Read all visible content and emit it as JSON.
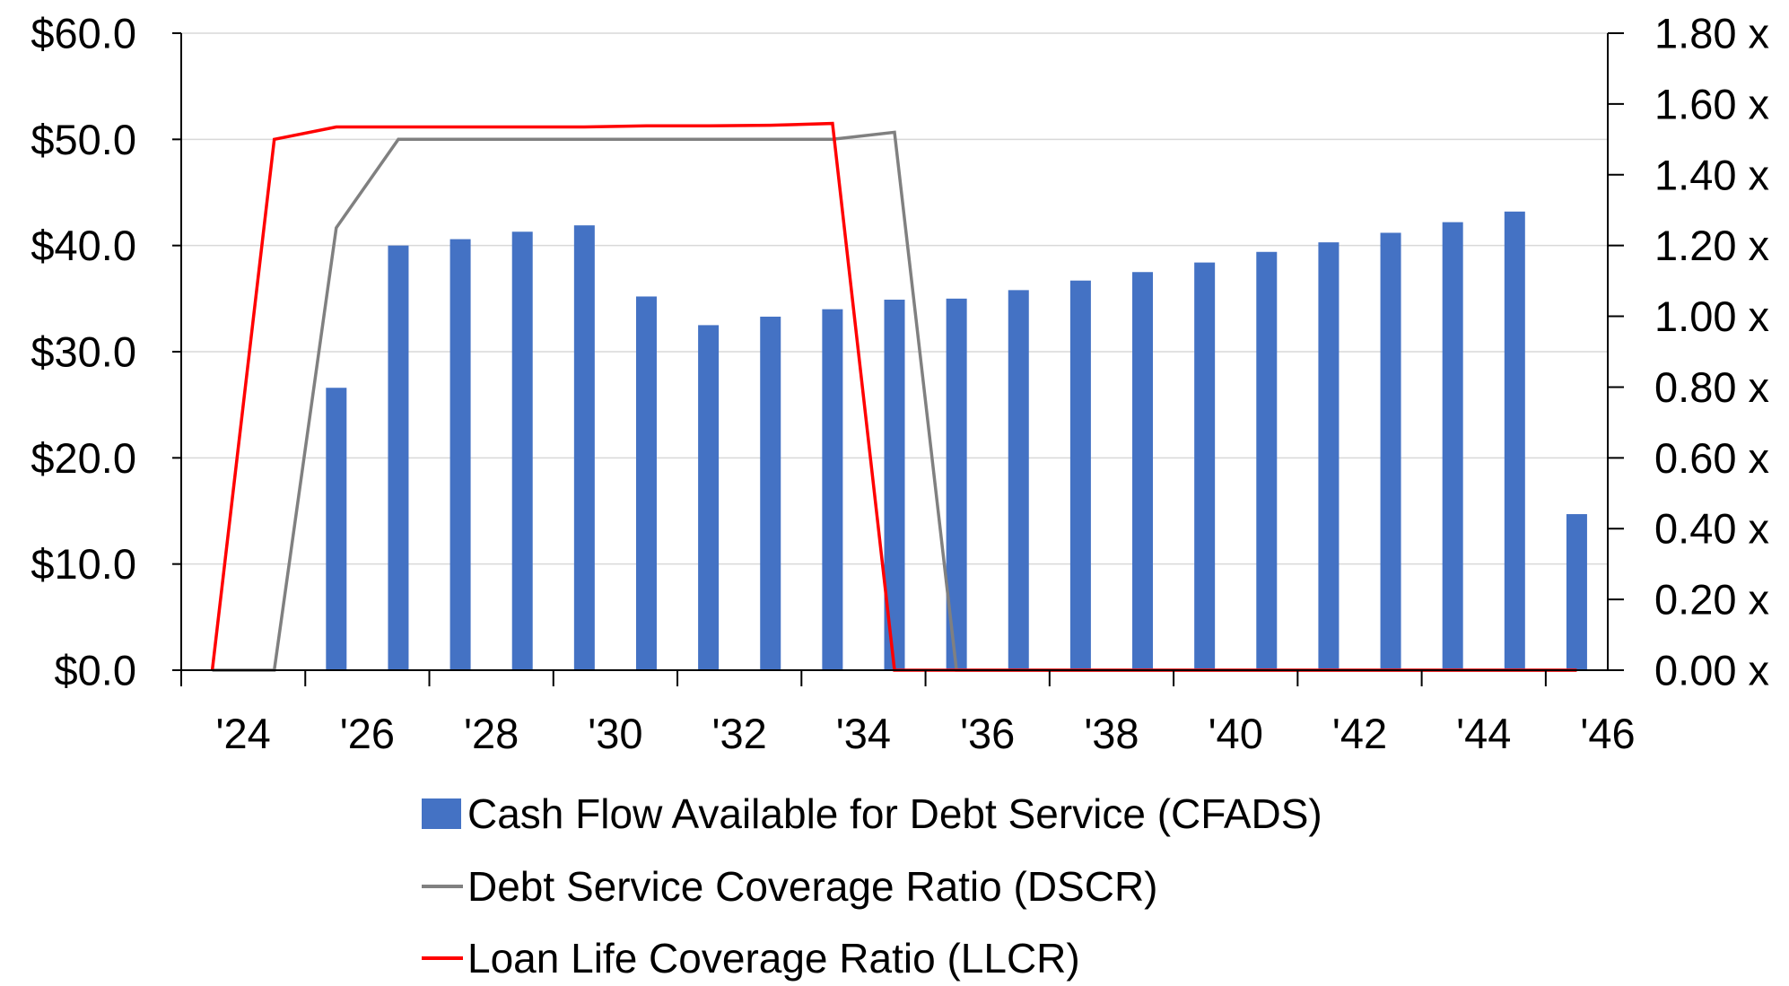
{
  "chart_data": {
    "type": "bar",
    "x": [
      2024,
      2025,
      2026,
      2027,
      2028,
      2029,
      2030,
      2031,
      2032,
      2033,
      2034,
      2035,
      2036,
      2037,
      2038,
      2039,
      2040,
      2041,
      2042,
      2043,
      2044,
      2045,
      2046
    ],
    "x_tick_labels": [
      "'24",
      "'26",
      "'28",
      "'30",
      "'32",
      "'34",
      "'36",
      "'38",
      "'40",
      "'42",
      "'44",
      "'46"
    ],
    "y_left": {
      "lim": [
        0,
        60
      ],
      "tick_labels": [
        "$0.0",
        "$10.0",
        "$20.0",
        "$30.0",
        "$40.0",
        "$50.0",
        "$60.0"
      ]
    },
    "y_right": {
      "lim": [
        0,
        1.8
      ],
      "tick_labels": [
        "0.00 x",
        "0.20 x",
        "0.40 x",
        "0.60 x",
        "0.80 x",
        "1.00 x",
        "1.20 x",
        "1.40 x",
        "1.60 x",
        "1.80 x"
      ]
    },
    "grid": true,
    "legend_position": "bottom",
    "series": [
      {
        "name": "Cash Flow Available for Debt Service (CFADS)",
        "kind": "bar",
        "axis": "left",
        "color": "#4472C4",
        "values": [
          0,
          0,
          26.6,
          40.0,
          40.6,
          41.3,
          41.9,
          35.2,
          32.5,
          33.3,
          34.0,
          34.9,
          35.0,
          35.8,
          36.7,
          37.5,
          38.4,
          39.4,
          40.3,
          41.2,
          42.2,
          43.2,
          14.7
        ]
      },
      {
        "name": "Debt Service Coverage Ratio (DSCR)",
        "kind": "line",
        "axis": "right",
        "color": "#808080",
        "values": [
          0,
          0,
          1.25,
          1.5,
          1.5,
          1.5,
          1.5,
          1.5,
          1.5,
          1.5,
          1.5,
          1.52,
          0,
          0,
          0,
          0,
          0,
          0,
          0,
          0,
          0,
          0,
          0
        ]
      },
      {
        "name": "Loan Life Coverage Ratio (LLCR)",
        "kind": "line",
        "axis": "right",
        "color": "#FF0000",
        "values": [
          0,
          1.5,
          1.535,
          1.535,
          1.535,
          1.535,
          1.535,
          1.538,
          1.538,
          1.54,
          1.545,
          0,
          0,
          0,
          0,
          0,
          0,
          0,
          0,
          0,
          0,
          0,
          0
        ]
      }
    ]
  }
}
